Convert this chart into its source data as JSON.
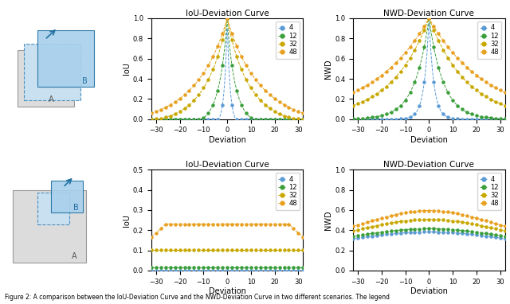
{
  "sizes": [
    4,
    12,
    32,
    48
  ],
  "colors": [
    "#5B9BD5",
    "#3A9E3A",
    "#C8A800",
    "#E8A020"
  ],
  "deviation_range": [
    -32,
    32
  ],
  "title_iou": "IoU-Deviation Curve",
  "title_nwd": "NWD-Deviation Curve",
  "xlabel": "Deviation",
  "ylabel_iou": "IoU",
  "ylabel_nwd": "NWD",
  "legend_labels": [
    "4",
    "12",
    "32",
    "48"
  ],
  "caption": "Figure 2: A comparison between the IoU-Deviation Curve and the NWD-Deviation Curve in two different scenarios. The legend"
}
